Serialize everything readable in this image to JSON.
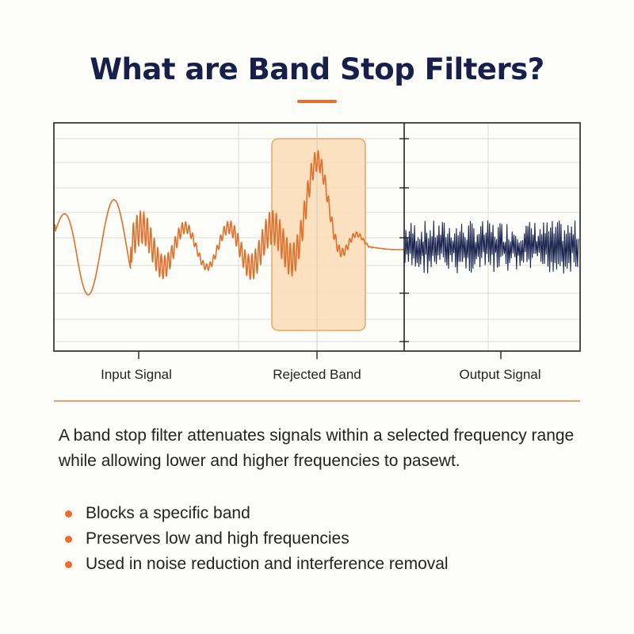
{
  "title": "What are Band Stop Filters?",
  "colors": {
    "accent": "#e8702a",
    "title": "#17204a",
    "input_signal": "#e0702a",
    "output_signal": "#1a2550",
    "band_fill": "#fbdcb6",
    "band_stroke": "#e8a66a"
  },
  "diagram": {
    "labels": {
      "input": "Input Signal",
      "band": "Rejected Band",
      "output": "Output Signal"
    }
  },
  "description": "A band stop filter attenuates signals within a selected frequency range while allowing lower and higher frequencies to pasewt.",
  "bullets": [
    "Blocks a specific band",
    "Preserves low and high frequencies",
    "Used in noise reduction and interference removal"
  ]
}
